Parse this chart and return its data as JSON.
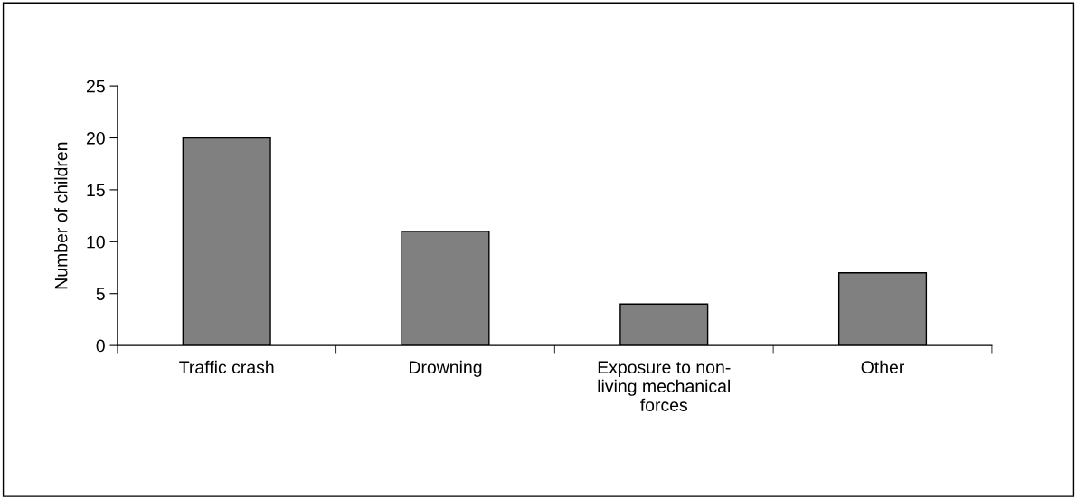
{
  "chart_data": {
    "type": "bar",
    "categories": [
      "Traffic crash",
      "Drowning",
      "Exposure to non-living mechanical forces",
      "Other"
    ],
    "values": [
      20,
      11,
      4,
      7
    ],
    "color": "#808080",
    "ylabel": "Number of children",
    "ylim": [
      0,
      25
    ],
    "yticks": [
      0,
      5,
      10,
      15,
      20,
      25
    ],
    "grid": false,
    "legend": false
  }
}
